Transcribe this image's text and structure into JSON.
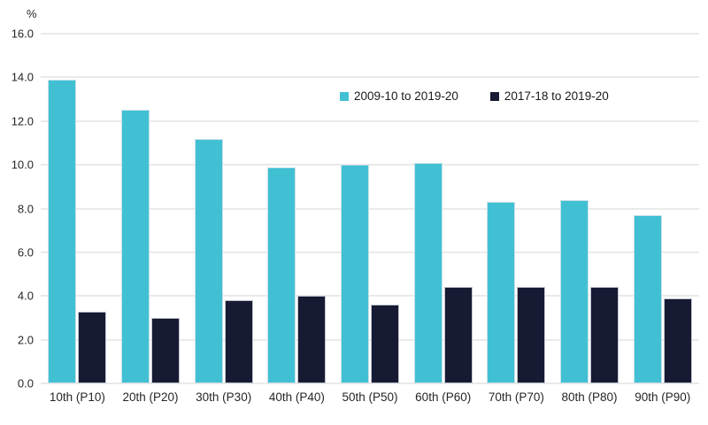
{
  "chart_data": {
    "type": "bar",
    "title": "",
    "ylabel": "%",
    "xlabel": "",
    "categories": [
      "10th (P10)",
      "20th (P20)",
      "30th (P30)",
      "40th (P40)",
      "50th (P50)",
      "60th (P60)",
      "70th (P70)",
      "80th (P80)",
      "90th (P90)"
    ],
    "series": [
      {
        "name": "2009-10 to 2019-20",
        "color": "#41C0D4",
        "values": [
          13.9,
          12.5,
          11.2,
          9.9,
          10.0,
          10.1,
          8.3,
          8.4,
          7.7
        ]
      },
      {
        "name": "2017-18 to 2019-20",
        "color": "#171A33",
        "values": [
          3.3,
          3.0,
          3.8,
          4.0,
          3.6,
          4.4,
          4.4,
          4.4,
          3.9
        ]
      }
    ],
    "ylim": [
      0,
      16
    ],
    "y_tick_labels": [
      "16.0",
      "14.0",
      "12.0",
      "10.0",
      "8.0",
      "6.0",
      "4.0",
      "2.0",
      "0.0"
    ],
    "grid": true,
    "legend_position": "top-center"
  },
  "colors": {
    "series_1": "#41C0D4",
    "series_2": "#171A33",
    "gridline": "#eaeaea",
    "axis_text": "#262626",
    "background": "#ffffff"
  }
}
